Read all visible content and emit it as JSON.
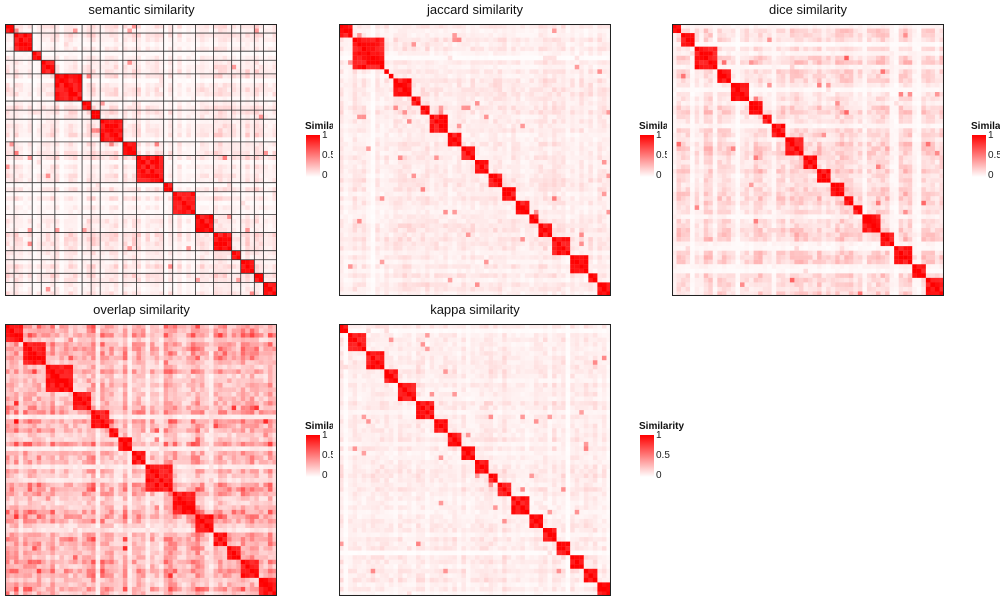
{
  "colors": {
    "low": "#ffffff",
    "high": "#ff0000",
    "border": "#222222",
    "grid": "#333333"
  },
  "legend": {
    "title": "Similarity",
    "ticks": [
      "1",
      "0.5",
      "0"
    ]
  },
  "chart_data": [
    {
      "type": "heatmap",
      "title": "semantic similarity",
      "n": 60,
      "base": 0.09,
      "blocks": [
        [
          0,
          2
        ],
        [
          2,
          6
        ],
        [
          6,
          8
        ],
        [
          8,
          11
        ],
        [
          11,
          17
        ],
        [
          17,
          19
        ],
        [
          19,
          21
        ],
        [
          21,
          26
        ],
        [
          26,
          29
        ],
        [
          29,
          35
        ],
        [
          35,
          37
        ],
        [
          37,
          42
        ],
        [
          42,
          46
        ],
        [
          46,
          50
        ],
        [
          50,
          52
        ],
        [
          52,
          55
        ],
        [
          55,
          57
        ],
        [
          57,
          60
        ]
      ],
      "gridlines": true,
      "legend_clipped": true
    },
    {
      "type": "heatmap",
      "title": "jaccard similarity",
      "n": 60,
      "base": 0.07,
      "blocks": [
        [
          0,
          3
        ],
        [
          3,
          10
        ],
        [
          10,
          11
        ],
        [
          11,
          12
        ],
        [
          12,
          16
        ],
        [
          16,
          18
        ],
        [
          18,
          20
        ],
        [
          20,
          24
        ],
        [
          24,
          27
        ],
        [
          27,
          30
        ],
        [
          30,
          33
        ],
        [
          33,
          36
        ],
        [
          36,
          39
        ],
        [
          39,
          42
        ],
        [
          42,
          44
        ],
        [
          44,
          47
        ],
        [
          47,
          51
        ],
        [
          51,
          55
        ],
        [
          55,
          57
        ],
        [
          57,
          60
        ]
      ],
      "gridlines": false,
      "legend_clipped": true
    },
    {
      "type": "heatmap",
      "title": "dice similarity",
      "n": 60,
      "base": 0.12,
      "blocks": [
        [
          0,
          2
        ],
        [
          2,
          5
        ],
        [
          5,
          10
        ],
        [
          10,
          13
        ],
        [
          13,
          17
        ],
        [
          17,
          20
        ],
        [
          20,
          22
        ],
        [
          22,
          25
        ],
        [
          25,
          29
        ],
        [
          29,
          32
        ],
        [
          32,
          35
        ],
        [
          35,
          38
        ],
        [
          38,
          40
        ],
        [
          40,
          42
        ],
        [
          42,
          46
        ],
        [
          46,
          49
        ],
        [
          49,
          53
        ],
        [
          53,
          56
        ],
        [
          56,
          60
        ]
      ],
      "gridlines": false,
      "legend_clipped": true
    },
    {
      "type": "heatmap",
      "title": "overlap similarity",
      "n": 60,
      "base": 0.28,
      "blocks": [
        [
          0,
          4
        ],
        [
          4,
          9
        ],
        [
          9,
          15
        ],
        [
          15,
          19
        ],
        [
          19,
          23
        ],
        [
          23,
          25
        ],
        [
          25,
          28
        ],
        [
          28,
          31
        ],
        [
          31,
          37
        ],
        [
          37,
          42
        ],
        [
          42,
          46
        ],
        [
          46,
          49
        ],
        [
          49,
          52
        ],
        [
          52,
          56
        ],
        [
          56,
          60
        ]
      ],
      "gridlines": false,
      "legend_clipped": true
    },
    {
      "type": "heatmap",
      "title": "kappa similarity",
      "n": 60,
      "base": 0.07,
      "blocks": [
        [
          0,
          2
        ],
        [
          2,
          6
        ],
        [
          6,
          10
        ],
        [
          10,
          13
        ],
        [
          13,
          17
        ],
        [
          17,
          21
        ],
        [
          21,
          24
        ],
        [
          24,
          27
        ],
        [
          27,
          30
        ],
        [
          30,
          33
        ],
        [
          33,
          35
        ],
        [
          35,
          38
        ],
        [
          38,
          42
        ],
        [
          42,
          45
        ],
        [
          45,
          48
        ],
        [
          48,
          51
        ],
        [
          51,
          54
        ],
        [
          54,
          57
        ],
        [
          57,
          60
        ]
      ],
      "gridlines": false,
      "legend_clipped": false
    }
  ]
}
